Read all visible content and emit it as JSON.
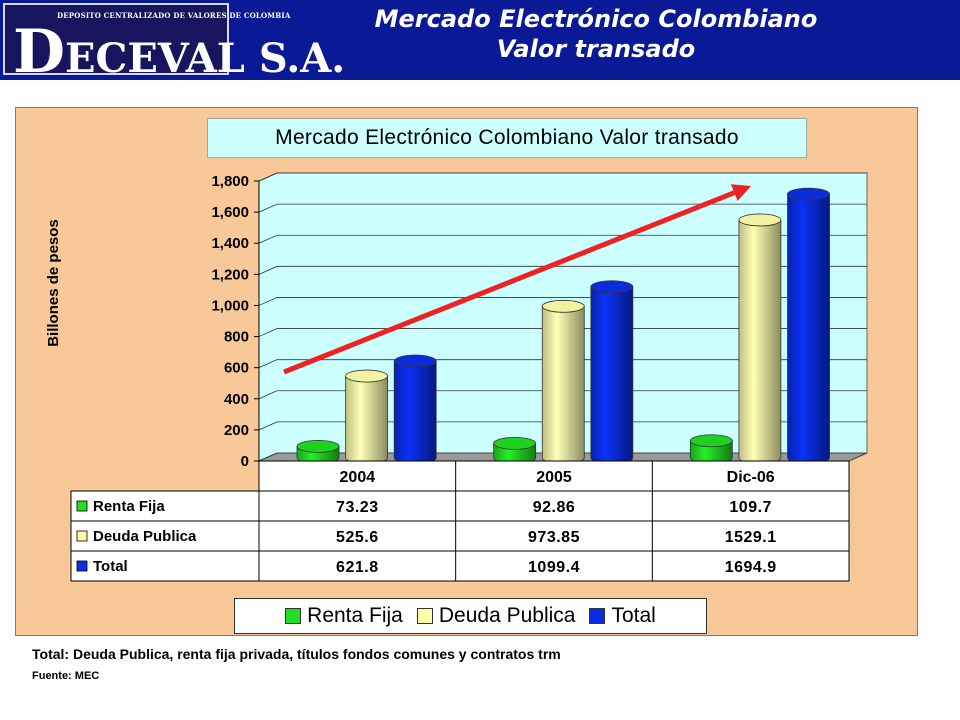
{
  "header": {
    "logo_tagline": "DEPOSITO CENTRALIZADO DE VALORES DE COLOMBIA",
    "logo_initial": "D",
    "logo_rest": "ECEVAL S.A.",
    "title_line1": "Mercado Electrónico Colombiano",
    "title_line2": "Valor transado"
  },
  "chart_data": {
    "type": "bar",
    "title": "Mercado Electrónico Colombiano Valor transado",
    "ylabel": "Billones de pesos",
    "xlabel": "",
    "categories": [
      "2004",
      "2005",
      "Dic-06"
    ],
    "ylim": [
      0,
      1800
    ],
    "yticks": [
      0,
      200,
      400,
      600,
      800,
      1000,
      1200,
      1400,
      1600,
      1800
    ],
    "ytick_labels": [
      "0",
      "200",
      "400",
      "600",
      "800",
      "1,000",
      "1,200",
      "1,400",
      "1,600",
      "1,800"
    ],
    "grid": true,
    "legend_position": "bottom",
    "series": [
      {
        "name": "Renta Fija",
        "color": "#22dd22",
        "values": [
          73.23,
          92.86,
          109.7
        ],
        "labels": [
          "73.23",
          "92.86",
          "109.7"
        ]
      },
      {
        "name": "Deuda Publica",
        "color": "#ffffaa",
        "values": [
          525.6,
          973.85,
          1529.1
        ],
        "labels": [
          "525.6",
          "973.85",
          "1529.1"
        ]
      },
      {
        "name": "Total",
        "color": "#0a2ee6",
        "values": [
          621.8,
          1099.4,
          1694.9
        ],
        "labels": [
          "621.8",
          "1099.4",
          "1694.9"
        ]
      }
    ],
    "annotation": "trend-arrow"
  },
  "colors": {
    "header_bg": "#0a1a96",
    "panel_bg": "#f8c898",
    "plot_bg": "#ccffff",
    "arrow": "#ee2222"
  },
  "footnote": "Total:  Deuda Publica, renta fija privada, títulos fondos comunes y contratos trm",
  "source": "Fuente: MEC"
}
